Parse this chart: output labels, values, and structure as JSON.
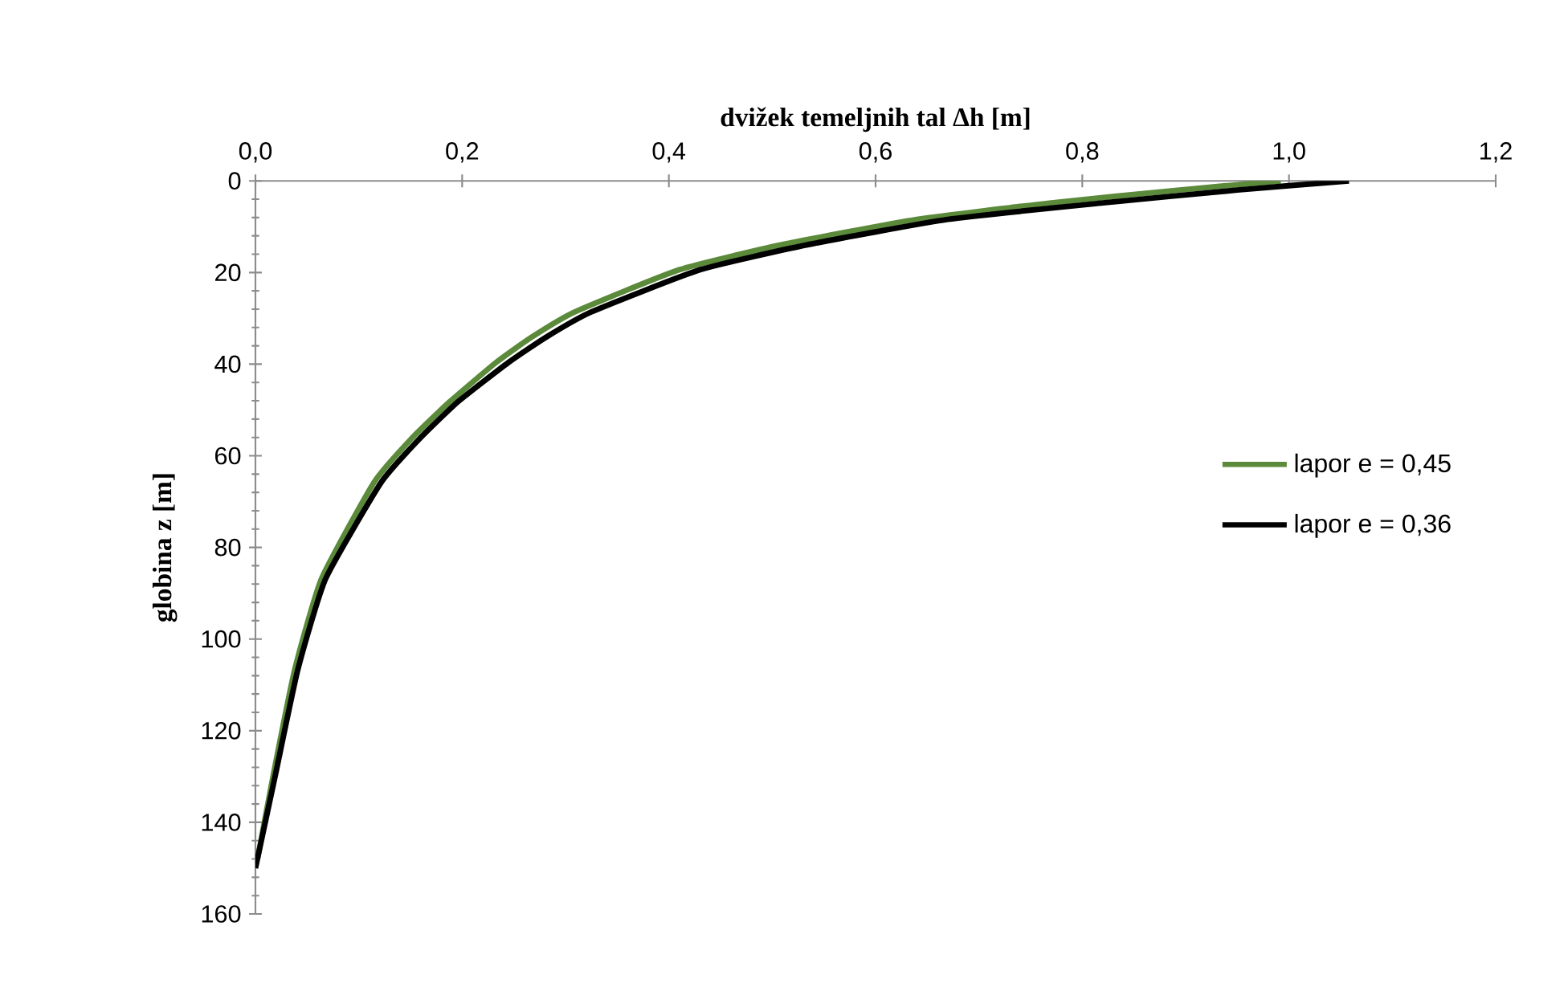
{
  "chart_data": {
    "type": "line",
    "xlabel": "dvižek temeljnih tal Δh [m]",
    "ylabel": "globina z [m]",
    "xlim": [
      0,
      1.2
    ],
    "xticks": [
      {
        "value": 0,
        "label": "0,0"
      },
      {
        "value": 0.2,
        "label": "0,2"
      },
      {
        "value": 0.4,
        "label": "0,4"
      },
      {
        "value": 0.6,
        "label": "0,6"
      },
      {
        "value": 0.8,
        "label": "0,8"
      },
      {
        "value": 1.0,
        "label": "1,0"
      },
      {
        "value": 1.2,
        "label": "1,2"
      }
    ],
    "ylim": [
      160,
      0
    ],
    "yticks": [
      0,
      20,
      40,
      60,
      80,
      100,
      120,
      140,
      160
    ],
    "legend": "right",
    "grid": false,
    "marker": "none",
    "line_style": "solid",
    "series": [
      {
        "name": "lapor e = 0,45",
        "color": "#5b8a3a",
        "x": [
          0.992,
          0.894,
          0.77,
          0.64,
          0.51,
          0.41,
          0.309,
          0.268,
          0.233,
          0.188,
          0.152,
          0.115,
          0.064,
          0.038,
          0.017,
          0.002
        ],
        "values": [
          0,
          2,
          4.8,
          8.4,
          13.9,
          19.4,
          28.6,
          34,
          39.6,
          48.2,
          56,
          65.7,
          86.8,
          106.7,
          130,
          148
        ]
      },
      {
        "name": "lapor e = 0,36",
        "color": "#000000",
        "x": [
          1.058,
          0.95,
          0.82,
          0.67,
          0.535,
          0.43,
          0.325,
          0.282,
          0.245,
          0.196,
          0.16,
          0.122,
          0.068,
          0.041,
          0.019,
          0.0
        ],
        "values": [
          0,
          2,
          4.8,
          8.4,
          13.9,
          19.4,
          28.6,
          34,
          39.6,
          48.2,
          56,
          65.7,
          86.8,
          106.7,
          130,
          150
        ]
      }
    ]
  }
}
